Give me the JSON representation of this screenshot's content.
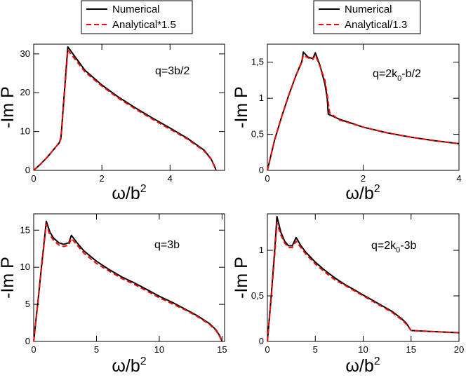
{
  "legends": [
    {
      "entries": [
        {
          "label": "Numerical",
          "color": "#000000",
          "dash": false
        },
        {
          "label": "Analytical*1.5",
          "color": "#ff0000",
          "dash": true
        }
      ]
    },
    {
      "entries": [
        {
          "label": "Numerical",
          "color": "#000000",
          "dash": false
        },
        {
          "label": "Analytical/1.3",
          "color": "#ff0000",
          "dash": true
        }
      ]
    }
  ],
  "chart_data": [
    {
      "type": "line",
      "annotation": {
        "main": "q=3b/2",
        "sub": ""
      },
      "ylabel": "-Im P",
      "xlabel": {
        "main": "ω/b",
        "sup": "2"
      },
      "xlim": [
        0,
        5.6
      ],
      "ylim": [
        0,
        32.5
      ],
      "xticks": [
        0,
        2,
        4
      ],
      "xtick_labels": [
        "0",
        "2",
        "4"
      ],
      "yticks": [
        0,
        10,
        20,
        30
      ],
      "ytick_labels": [
        "0",
        "10",
        "20",
        "30"
      ],
      "series": [
        {
          "name": "Numerical",
          "color": "#000000",
          "dash": false,
          "x": [
            0,
            0.2,
            0.4,
            0.6,
            0.75,
            0.8,
            1.0,
            1.5,
            2.0,
            2.5,
            3.0,
            3.5,
            4.0,
            4.5,
            5.0,
            5.2,
            5.3,
            5.35
          ],
          "y": [
            0,
            1.6,
            3.4,
            5.5,
            7.1,
            8.5,
            31.8,
            25.8,
            22.0,
            18.8,
            16.0,
            13.4,
            10.9,
            8.3,
            5.2,
            3.0,
            1.2,
            0
          ]
        },
        {
          "name": "Analytical*1.5",
          "color": "#ff0000",
          "dash": true,
          "x": [
            0,
            0.2,
            0.4,
            0.6,
            0.75,
            0.8,
            0.98,
            1.0,
            1.5,
            2.0,
            2.5,
            3.0,
            3.5,
            4.0,
            4.5,
            5.0,
            5.2,
            5.3,
            5.35
          ],
          "y": [
            0,
            1.6,
            3.4,
            5.5,
            7.1,
            8.2,
            28.5,
            31.0,
            25.4,
            21.7,
            18.5,
            15.7,
            13.1,
            10.6,
            8.1,
            5.0,
            2.9,
            1.1,
            0
          ]
        }
      ]
    },
    {
      "type": "line",
      "annotation": {
        "main": "q=2k",
        "sub": "0",
        "rest": "-b/2"
      },
      "ylabel": "-Im P",
      "xlabel": {
        "main": "ω/b",
        "sup": "2"
      },
      "xlim": [
        0,
        4
      ],
      "ylim": [
        0,
        1.75
      ],
      "xticks": [
        0,
        2,
        4
      ],
      "xtick_labels": [
        "0",
        "2",
        "4"
      ],
      "yticks": [
        0,
        0.5,
        1.0,
        1.5
      ],
      "ytick_labels": [
        "0",
        "0,5",
        "1",
        "1,5"
      ],
      "series": [
        {
          "name": "Numerical",
          "color": "#000000",
          "dash": false,
          "x": [
            0,
            0.15,
            0.3,
            0.45,
            0.6,
            0.72,
            0.75,
            0.85,
            0.95,
            1.0,
            1.1,
            1.2,
            1.25,
            1.27,
            1.5,
            2.0,
            2.5,
            3.0,
            3.5,
            4.0
          ],
          "y": [
            0,
            0.42,
            0.75,
            1.05,
            1.32,
            1.51,
            1.64,
            1.57,
            1.55,
            1.63,
            1.45,
            1.2,
            1.0,
            0.78,
            0.71,
            0.6,
            0.52,
            0.46,
            0.41,
            0.37
          ]
        },
        {
          "name": "Analytical/1.3",
          "color": "#ff0000",
          "dash": true,
          "x": [
            0,
            0.15,
            0.3,
            0.45,
            0.6,
            0.72,
            0.75,
            0.85,
            0.95,
            1.0,
            1.1,
            1.2,
            1.25,
            1.3,
            1.5,
            2.0,
            2.5,
            3.0,
            3.5,
            4.0
          ],
          "y": [
            0,
            0.42,
            0.75,
            1.05,
            1.32,
            1.5,
            1.6,
            1.56,
            1.54,
            1.6,
            1.44,
            1.25,
            1.05,
            0.8,
            0.7,
            0.6,
            0.52,
            0.46,
            0.41,
            0.37
          ]
        }
      ]
    },
    {
      "type": "line",
      "annotation": {
        "main": "q=3b",
        "sub": ""
      },
      "ylabel": "-Im P",
      "xlabel": {
        "main": "ω/b",
        "sup": "2"
      },
      "xlim": [
        0,
        15.2
      ],
      "ylim": [
        0,
        17.2
      ],
      "xticks": [
        0,
        5,
        10,
        15
      ],
      "xtick_labels": [
        "0",
        "5",
        "10",
        "15"
      ],
      "yticks": [
        0,
        5,
        10,
        15
      ],
      "ytick_labels": [
        "0",
        "5",
        "10",
        "15"
      ],
      "series": [
        {
          "name": "Numerical",
          "color": "#000000",
          "dash": false,
          "x": [
            0,
            0.3,
            0.6,
            0.9,
            1.0,
            1.3,
            1.6,
            2.0,
            2.4,
            2.8,
            3.0,
            3.5,
            4.0,
            5.0,
            6.0,
            7.0,
            8.0,
            9.0,
            10.0,
            11.0,
            12.0,
            13.0,
            14.0,
            14.5,
            14.8,
            15.0
          ],
          "y": [
            0,
            4.8,
            9.7,
            14.5,
            16.2,
            14.7,
            13.9,
            13.3,
            13.1,
            13.3,
            14.3,
            13.2,
            12.2,
            10.8,
            9.7,
            8.7,
            7.9,
            7.0,
            6.1,
            5.3,
            4.4,
            3.5,
            2.4,
            1.6,
            0.8,
            0
          ]
        },
        {
          "name": "Analytical*1.5",
          "color": "#ff0000",
          "dash": true,
          "x": [
            0,
            0.3,
            0.6,
            0.9,
            1.0,
            1.3,
            1.6,
            2.0,
            2.4,
            2.8,
            3.0,
            3.5,
            4.0,
            5.0,
            6.0,
            7.0,
            8.0,
            9.0,
            10.0,
            11.0,
            12.0,
            13.0,
            14.0,
            14.5,
            14.8,
            15.0
          ],
          "y": [
            0,
            4.7,
            9.5,
            14.2,
            15.8,
            14.3,
            13.6,
            13.0,
            12.8,
            13.0,
            13.9,
            12.9,
            11.9,
            10.5,
            9.5,
            8.5,
            7.7,
            6.8,
            5.9,
            5.1,
            4.3,
            3.4,
            2.3,
            1.5,
            0.7,
            0
          ]
        }
      ]
    },
    {
      "type": "line",
      "annotation": {
        "main": "q=2k",
        "sub": "0",
        "rest": "-3b"
      },
      "ylabel": "-Im P",
      "xlabel": {
        "main": "ω/b",
        "sup": "2"
      },
      "xlim": [
        0,
        20
      ],
      "ylim": [
        0,
        1.4
      ],
      "xticks": [
        0,
        5,
        10,
        15,
        20
      ],
      "xtick_labels": [
        "0",
        "5",
        "10",
        "15",
        "20"
      ],
      "yticks": [
        0,
        0.5,
        1.0
      ],
      "ytick_labels": [
        "0",
        "0,5",
        "1"
      ],
      "series": [
        {
          "name": "Numerical",
          "color": "#000000",
          "dash": false,
          "x": [
            0,
            0.4,
            0.8,
            1.0,
            1.4,
            1.8,
            2.2,
            2.6,
            3.0,
            3.5,
            4.0,
            5.0,
            6.0,
            7.0,
            8.0,
            9.0,
            10.0,
            11.0,
            12.0,
            13.0,
            14.0,
            14.5,
            15.0,
            16.0,
            17.0,
            18.0,
            19.0,
            20.0
          ],
          "y": [
            0,
            0.5,
            1.05,
            1.37,
            1.2,
            1.1,
            1.05,
            1.05,
            1.14,
            1.05,
            0.98,
            0.87,
            0.78,
            0.7,
            0.63,
            0.57,
            0.51,
            0.45,
            0.39,
            0.33,
            0.25,
            0.2,
            0.12,
            0.115,
            0.11,
            0.105,
            0.1,
            0.095
          ]
        },
        {
          "name": "Analytical/1.3",
          "color": "#ff0000",
          "dash": true,
          "x": [
            0,
            0.4,
            0.8,
            1.0,
            1.4,
            1.8,
            2.2,
            2.6,
            3.0,
            3.5,
            4.0,
            5.0,
            6.0,
            7.0,
            8.0,
            9.0,
            10.0,
            11.0,
            12.0,
            13.0,
            14.0,
            14.5,
            15.0,
            16.0,
            17.0,
            18.0,
            19.0,
            20.0
          ],
          "y": [
            0,
            0.48,
            1.0,
            1.3,
            1.17,
            1.08,
            1.03,
            1.03,
            1.1,
            1.03,
            0.96,
            0.85,
            0.76,
            0.68,
            0.62,
            0.56,
            0.5,
            0.44,
            0.38,
            0.32,
            0.24,
            0.19,
            0.12,
            0.115,
            0.11,
            0.105,
            0.1,
            0.095
          ]
        }
      ]
    }
  ]
}
